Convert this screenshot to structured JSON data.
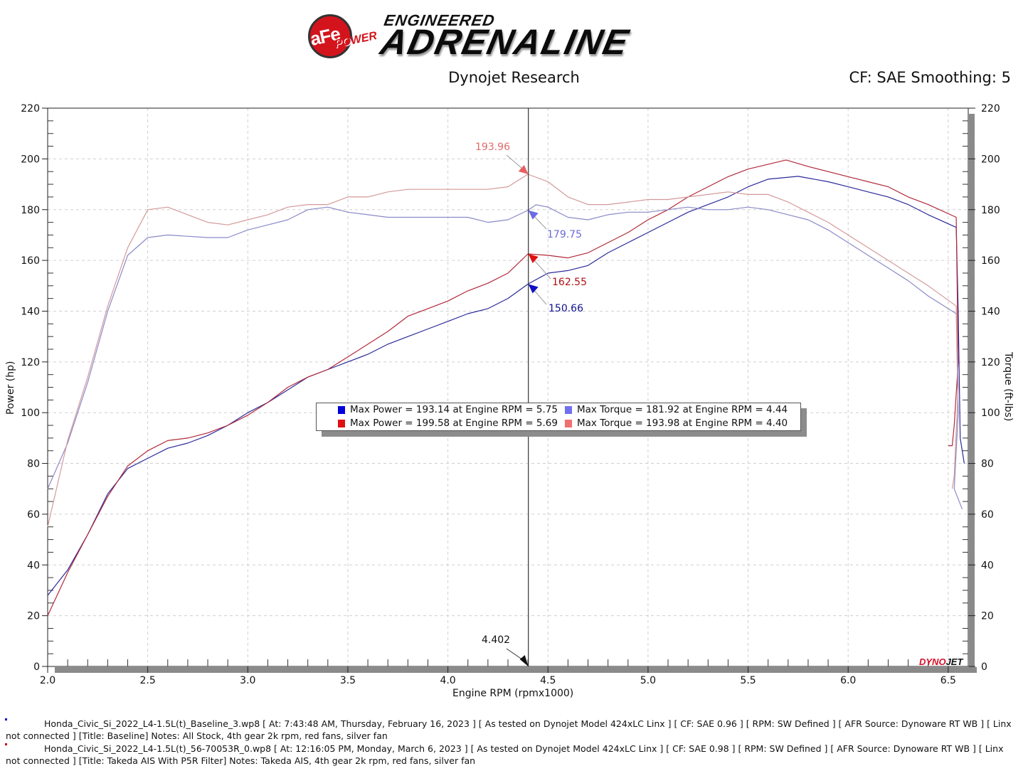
{
  "header": {
    "logo_brand": "aFe",
    "logo_sub": "POWER",
    "logo_tagline_top": "ENGINEERED",
    "logo_tagline_main": "ADRENALINE",
    "title": "Dynojet Research",
    "cf_smoothing": "CF: SAE Smoothing: 5"
  },
  "axes": {
    "x_label": "Engine RPM (rpmx1000)",
    "y_left_label": "Power (hp)",
    "y_right_label": "Torque (ft-lbs)",
    "x_ticks": [
      "2.0",
      "2.5",
      "3.0",
      "3.5",
      "4.0",
      "4.5",
      "5.0",
      "5.5",
      "6.0",
      "6.5"
    ],
    "y_ticks": [
      "0",
      "20",
      "40",
      "60",
      "80",
      "100",
      "120",
      "140",
      "160",
      "180",
      "200",
      "220"
    ]
  },
  "cursor": {
    "rpm_label": "4.402",
    "annotations": [
      {
        "label": "193.96",
        "color": "#e06a6a"
      },
      {
        "label": "179.75",
        "color": "#6a6ad8"
      },
      {
        "label": "162.55",
        "color": "#b01010"
      },
      {
        "label": "150.66",
        "color": "#101090"
      }
    ]
  },
  "legend": {
    "items": [
      {
        "text": "Max Power = 193.14 at Engine RPM = 5.75",
        "color": "#0000dd"
      },
      {
        "text": "Max Torque = 181.92 at Engine RPM = 4.44",
        "color": "#7070f0"
      },
      {
        "text": "Max Power = 199.58 at Engine RPM = 5.69",
        "color": "#e01010"
      },
      {
        "text": "Max Torque = 193.98 at Engine RPM = 4.40",
        "color": "#f07070"
      }
    ]
  },
  "watermark": {
    "part1": "DYNO",
    "part2": "JET"
  },
  "footer": {
    "runs": [
      {
        "marker_color": "#0000cc",
        "text": "Honda_Civic_Si_2022_L4-1.5L(t)_Baseline_3.wp8 [ At: 7:43:48 AM, Thursday, February 16, 2023 ] [ As tested on Dynojet Model 424xLC Linx ] [ CF: SAE 0.96 ] [ RPM: SW Defined ] [ AFR Source: Dynoware RT WB ] [ Linx not connected ] [Title: Baseline]  Notes: All Stock, 4th gear 2k rpm, red fans, silver fan"
      },
      {
        "marker_color": "#cc0000",
        "text": "Honda_Civic_Si_2022_L4-1.5L(t)_56-70053R_0.wp8 [ At: 12:16:05 PM, Monday, March 6, 2023 ] [ As tested on Dynojet Model 424xLC Linx ] [ CF: SAE 0.98 ] [ RPM: SW Defined ] [ AFR Source: Dynoware RT WB ] [ Linx not connected ] [Title: Takeda AIS With P5R Filter]  Notes: Takeda AIS, 4th gear 2k rpm, red fans, silver fan"
      }
    ]
  },
  "chart_data": {
    "type": "line",
    "title": "Dynojet Research",
    "subtitle": "CF: SAE Smoothing: 5",
    "xlabel": "Engine RPM (rpmx1000)",
    "ylabel": "Power (hp)",
    "y2label": "Torque (ft-lbs)",
    "xlim": [
      2.0,
      6.6
    ],
    "ylim": [
      0,
      220
    ],
    "y2lim": [
      0,
      220
    ],
    "grid": true,
    "legend_position": "center",
    "cursor_x": 4.402,
    "series": [
      {
        "name": "Baseline Power (hp)",
        "color": "#2a2a9a",
        "axis": "left",
        "points": [
          [
            2.0,
            28
          ],
          [
            2.1,
            38
          ],
          [
            2.2,
            52
          ],
          [
            2.3,
            68
          ],
          [
            2.4,
            78
          ],
          [
            2.5,
            82
          ],
          [
            2.6,
            86
          ],
          [
            2.7,
            88
          ],
          [
            2.8,
            91
          ],
          [
            2.9,
            95
          ],
          [
            3.0,
            100
          ],
          [
            3.1,
            104
          ],
          [
            3.2,
            109
          ],
          [
            3.3,
            114
          ],
          [
            3.4,
            117
          ],
          [
            3.5,
            120
          ],
          [
            3.6,
            123
          ],
          [
            3.7,
            127
          ],
          [
            3.8,
            130
          ],
          [
            3.9,
            133
          ],
          [
            4.0,
            136
          ],
          [
            4.1,
            139
          ],
          [
            4.2,
            141
          ],
          [
            4.3,
            145
          ],
          [
            4.4,
            150.66
          ],
          [
            4.5,
            155
          ],
          [
            4.6,
            156
          ],
          [
            4.7,
            158
          ],
          [
            4.8,
            163
          ],
          [
            4.9,
            167
          ],
          [
            5.0,
            171
          ],
          [
            5.1,
            175
          ],
          [
            5.2,
            179
          ],
          [
            5.3,
            182
          ],
          [
            5.4,
            185
          ],
          [
            5.5,
            189
          ],
          [
            5.6,
            192
          ],
          [
            5.75,
            193.14
          ],
          [
            5.9,
            191
          ],
          [
            6.0,
            189
          ],
          [
            6.1,
            187
          ],
          [
            6.2,
            185
          ],
          [
            6.3,
            182
          ],
          [
            6.4,
            178
          ],
          [
            6.54,
            173
          ],
          [
            6.55,
            140
          ],
          [
            6.56,
            90
          ],
          [
            6.58,
            80
          ]
        ]
      },
      {
        "name": "Takeda AIS Power (hp)",
        "color": "#b02a3a",
        "axis": "left",
        "points": [
          [
            2.0,
            20
          ],
          [
            2.1,
            37
          ],
          [
            2.2,
            52
          ],
          [
            2.3,
            67
          ],
          [
            2.4,
            79
          ],
          [
            2.5,
            85
          ],
          [
            2.6,
            89
          ],
          [
            2.7,
            90
          ],
          [
            2.8,
            92
          ],
          [
            2.9,
            95
          ],
          [
            3.0,
            99
          ],
          [
            3.1,
            104
          ],
          [
            3.2,
            110
          ],
          [
            3.3,
            114
          ],
          [
            3.4,
            117
          ],
          [
            3.5,
            122
          ],
          [
            3.6,
            127
          ],
          [
            3.7,
            132
          ],
          [
            3.8,
            138
          ],
          [
            3.9,
            141
          ],
          [
            4.0,
            144
          ],
          [
            4.1,
            148
          ],
          [
            4.2,
            151
          ],
          [
            4.3,
            155
          ],
          [
            4.4,
            162.55
          ],
          [
            4.5,
            162
          ],
          [
            4.6,
            161
          ],
          [
            4.7,
            163
          ],
          [
            4.8,
            167
          ],
          [
            4.9,
            171
          ],
          [
            5.0,
            176
          ],
          [
            5.1,
            180
          ],
          [
            5.2,
            185
          ],
          [
            5.3,
            189
          ],
          [
            5.4,
            193
          ],
          [
            5.5,
            196
          ],
          [
            5.69,
            199.58
          ],
          [
            5.8,
            197
          ],
          [
            6.0,
            193
          ],
          [
            6.1,
            191
          ],
          [
            6.2,
            189
          ],
          [
            6.3,
            185
          ],
          [
            6.4,
            182
          ],
          [
            6.54,
            177
          ],
          [
            6.55,
            120
          ],
          [
            6.53,
            95
          ],
          [
            6.52,
            87
          ],
          [
            6.5,
            87
          ]
        ]
      },
      {
        "name": "Baseline Torque (ft-lbs)",
        "color": "#8a8ac8",
        "axis": "right",
        "points": [
          [
            2.0,
            70
          ],
          [
            2.1,
            88
          ],
          [
            2.2,
            112
          ],
          [
            2.3,
            140
          ],
          [
            2.4,
            162
          ],
          [
            2.5,
            169
          ],
          [
            2.6,
            170
          ],
          [
            2.8,
            169
          ],
          [
            2.9,
            169
          ],
          [
            3.0,
            172
          ],
          [
            3.1,
            174
          ],
          [
            3.2,
            176
          ],
          [
            3.3,
            180
          ],
          [
            3.4,
            181
          ],
          [
            3.5,
            179
          ],
          [
            3.6,
            178
          ],
          [
            3.7,
            177
          ],
          [
            3.8,
            177
          ],
          [
            3.9,
            177
          ],
          [
            4.0,
            177
          ],
          [
            4.1,
            177
          ],
          [
            4.2,
            175
          ],
          [
            4.3,
            176
          ],
          [
            4.4,
            179.75
          ],
          [
            4.44,
            181.92
          ],
          [
            4.5,
            181
          ],
          [
            4.6,
            177
          ],
          [
            4.7,
            176
          ],
          [
            4.8,
            178
          ],
          [
            4.9,
            179
          ],
          [
            5.0,
            179
          ],
          [
            5.1,
            180
          ],
          [
            5.2,
            181
          ],
          [
            5.3,
            180
          ],
          [
            5.4,
            180
          ],
          [
            5.5,
            181
          ],
          [
            5.6,
            180
          ],
          [
            5.7,
            178
          ],
          [
            5.8,
            176
          ],
          [
            5.9,
            172
          ],
          [
            6.0,
            167
          ],
          [
            6.1,
            162
          ],
          [
            6.2,
            157
          ],
          [
            6.3,
            152
          ],
          [
            6.4,
            146
          ],
          [
            6.54,
            139
          ],
          [
            6.55,
            100
          ],
          [
            6.53,
            70
          ],
          [
            6.57,
            62
          ]
        ]
      },
      {
        "name": "Takeda AIS Torque (ft-lbs)",
        "color": "#d49a9a",
        "axis": "right",
        "points": [
          [
            2.0,
            55
          ],
          [
            2.1,
            89
          ],
          [
            2.2,
            114
          ],
          [
            2.3,
            142
          ],
          [
            2.4,
            165
          ],
          [
            2.5,
            180
          ],
          [
            2.6,
            181
          ],
          [
            2.7,
            178
          ],
          [
            2.8,
            175
          ],
          [
            2.9,
            174
          ],
          [
            3.0,
            176
          ],
          [
            3.1,
            178
          ],
          [
            3.2,
            181
          ],
          [
            3.3,
            182
          ],
          [
            3.4,
            182
          ],
          [
            3.5,
            185
          ],
          [
            3.6,
            185
          ],
          [
            3.7,
            187
          ],
          [
            3.8,
            188
          ],
          [
            3.9,
            188
          ],
          [
            4.0,
            188
          ],
          [
            4.1,
            188
          ],
          [
            4.2,
            188
          ],
          [
            4.3,
            189
          ],
          [
            4.4,
            193.96
          ],
          [
            4.5,
            191
          ],
          [
            4.6,
            185
          ],
          [
            4.7,
            182
          ],
          [
            4.8,
            182
          ],
          [
            4.9,
            183
          ],
          [
            5.0,
            184
          ],
          [
            5.1,
            184
          ],
          [
            5.2,
            185
          ],
          [
            5.3,
            186
          ],
          [
            5.4,
            187
          ],
          [
            5.5,
            186
          ],
          [
            5.6,
            186
          ],
          [
            5.7,
            183
          ],
          [
            5.8,
            179
          ],
          [
            5.9,
            175
          ],
          [
            6.0,
            170
          ],
          [
            6.1,
            165
          ],
          [
            6.2,
            160
          ],
          [
            6.3,
            155
          ],
          [
            6.4,
            150
          ],
          [
            6.54,
            142
          ],
          [
            6.55,
            110
          ],
          [
            6.53,
            75
          ],
          [
            6.52,
            70
          ]
        ]
      }
    ],
    "annotations": [
      {
        "x": 4.402,
        "y": 193.96,
        "series": "Takeda AIS Torque"
      },
      {
        "x": 4.402,
        "y": 179.75,
        "series": "Baseline Torque"
      },
      {
        "x": 4.402,
        "y": 162.55,
        "series": "Takeda AIS Power"
      },
      {
        "x": 4.402,
        "y": 150.66,
        "series": "Baseline Power"
      }
    ],
    "legend": [
      "Max Power = 193.14 at Engine RPM = 5.75",
      "Max Torque = 181.92 at Engine RPM = 4.44",
      "Max Power = 199.58 at Engine RPM = 5.69",
      "Max Torque = 193.98 at Engine RPM = 4.40"
    ]
  }
}
